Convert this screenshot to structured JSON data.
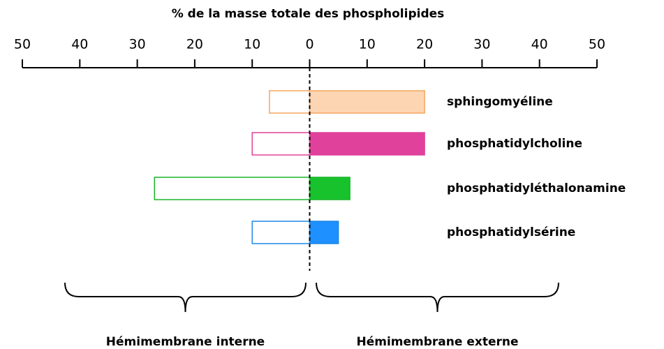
{
  "chart_data": {
    "type": "bar",
    "orientation": "horizontal",
    "title": "% de la masse totale des phospholipides",
    "categories": [
      "sphingomyéline",
      "phosphatidylcholine",
      "phosphatidyléthalonamine",
      "phosphatidylsérine"
    ],
    "colors": [
      "#f5a55f",
      "#e0419b",
      "#18b52a",
      "#1e88e5"
    ],
    "outer_fills": [
      "#fdd5b3",
      "#e0419b",
      "#18c22d",
      "#1e90ff"
    ],
    "series": [
      {
        "name": "Hémimembrane interne",
        "fill": "#ffffff",
        "values": [
          -7,
          -10,
          -27,
          -10
        ]
      },
      {
        "name": "Hémimembrane externe",
        "values": [
          20,
          20,
          7,
          5
        ]
      }
    ],
    "xlim": [
      -50,
      50
    ],
    "xticks": [
      {
        "value": -50,
        "label": "50"
      },
      {
        "value": -40,
        "label": "40"
      },
      {
        "value": -30,
        "label": "30"
      },
      {
        "value": -20,
        "label": "20"
      },
      {
        "value": -10,
        "label": "10"
      },
      0,
      10,
      20,
      30,
      40,
      50
    ]
  }
}
